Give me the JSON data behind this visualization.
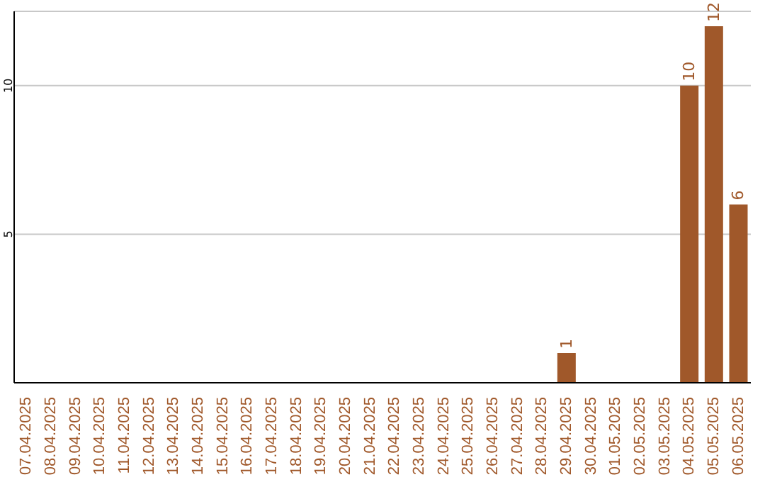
{
  "chart_data": {
    "type": "bar",
    "categories": [
      "07.04.2025",
      "08.04.2025",
      "09.04.2025",
      "10.04.2025",
      "11.04.2025",
      "12.04.2025",
      "13.04.2025",
      "14.04.2025",
      "15.04.2025",
      "16.04.2025",
      "17.04.2025",
      "18.04.2025",
      "19.04.2025",
      "20.04.2025",
      "21.04.2025",
      "22.04.2025",
      "23.04.2025",
      "24.04.2025",
      "25.04.2025",
      "26.04.2025",
      "27.04.2025",
      "28.04.2025",
      "29.04.2025",
      "30.04.2025",
      "01.05.2025",
      "02.05.2025",
      "03.05.2025",
      "04.05.2025",
      "05.05.2025",
      "06.05.2025"
    ],
    "values": [
      null,
      null,
      null,
      null,
      null,
      null,
      null,
      null,
      null,
      null,
      null,
      null,
      null,
      null,
      null,
      null,
      null,
      null,
      null,
      null,
      null,
      null,
      1,
      null,
      null,
      null,
      null,
      10,
      12,
      6
    ],
    "color": "#a0582a",
    "ylim": [
      0,
      12.5
    ],
    "yticks": [
      5,
      10
    ],
    "grid": "y",
    "data_labels": true
  }
}
